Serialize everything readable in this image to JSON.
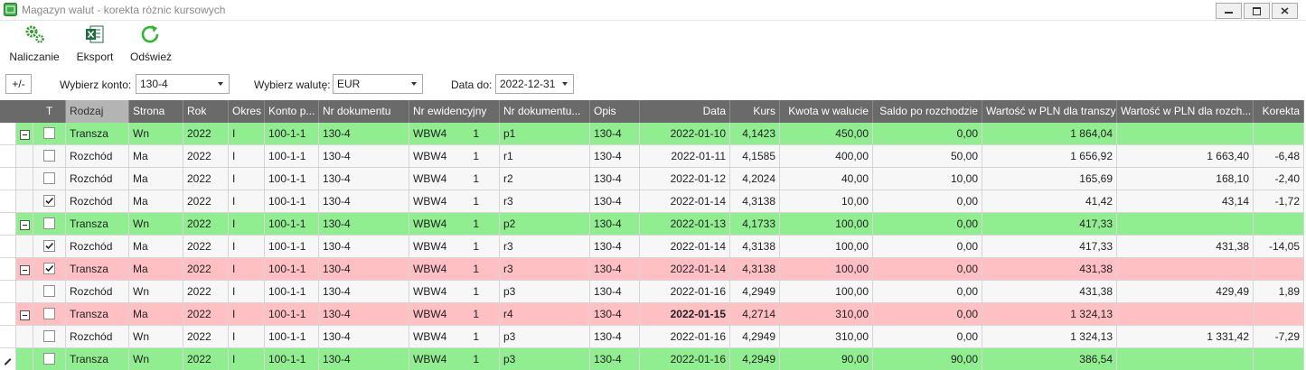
{
  "window": {
    "title": "Magazyn walut - korekta różnic kursowych"
  },
  "toolbar": {
    "buttons": [
      "Naliczanie",
      "Eksport",
      "Odśwież"
    ]
  },
  "filters": {
    "toggle": "+/-",
    "account_label": "Wybierz konto:",
    "account": "130-4",
    "currency_label": "Wybierz walutę:",
    "currency": "EUR",
    "date_label": "Data do:",
    "date": "2022-12-31"
  },
  "table": {
    "columns": [
      "T",
      "Rodzaj",
      "Strona",
      "Rok",
      "Okres",
      "Konto p...",
      "Nr dokumentu",
      "Nr ewidencyjny",
      "Nr dokumentu...",
      "Opis",
      "Data",
      "Kurs",
      "Kwota w walucie",
      "Saldo po rozchodzie",
      "Wartość w PLN dla transzy",
      "Wartość w PLN dla rozch...",
      "Korekta"
    ],
    "rows": [
      {
        "color": "#90ee90",
        "expander": true,
        "checked": false,
        "cells": [
          "Transza",
          "Wn",
          "2022",
          "I",
          "100-1-1",
          "130-4",
          [
            "WBW4",
            "1"
          ],
          "p1",
          "130-4",
          "2022-01-10",
          "4,1423",
          "450,00",
          "0,00",
          "1 864,04",
          null,
          null
        ]
      },
      {
        "color": "#f7f7f7",
        "expander": false,
        "checked": false,
        "cells": [
          "Rozchód",
          "Ma",
          "2022",
          "I",
          "100-1-1",
          "130-4",
          [
            "WBW4",
            "1"
          ],
          "r1",
          "130-4",
          "2022-01-11",
          "4,1585",
          "400,00",
          "50,00",
          "1 656,92",
          "1 663,40",
          "-6,48"
        ]
      },
      {
        "color": "#f7f7f7",
        "expander": false,
        "checked": false,
        "cells": [
          "Rozchód",
          "Ma",
          "2022",
          "I",
          "100-1-1",
          "130-4",
          [
            "WBW4",
            "1"
          ],
          "r2",
          "130-4",
          "2022-01-12",
          "4,2024",
          "40,00",
          "10,00",
          "165,69",
          "168,10",
          "-2,40"
        ]
      },
      {
        "color": "#f7f7f7",
        "expander": false,
        "checked": true,
        "cells": [
          "Rozchód",
          "Ma",
          "2022",
          "I",
          "100-1-1",
          "130-4",
          [
            "WBW4",
            "1"
          ],
          "r3",
          "130-4",
          "2022-01-14",
          "4,3138",
          "10,00",
          "0,00",
          "41,42",
          "43,14",
          "-1,72"
        ]
      },
      {
        "color": "#90ee90",
        "expander": true,
        "checked": false,
        "cells": [
          "Transza",
          "Wn",
          "2022",
          "I",
          "100-1-1",
          "130-4",
          [
            "WBW4",
            "1"
          ],
          "p2",
          "130-4",
          "2022-01-13",
          "4,1733",
          "100,00",
          "0,00",
          "417,33",
          null,
          null
        ]
      },
      {
        "color": "#f7f7f7",
        "expander": false,
        "checked": true,
        "cells": [
          "Rozchód",
          "Ma",
          "2022",
          "I",
          "100-1-1",
          "130-4",
          [
            "WBW4",
            "1"
          ],
          "r3",
          "130-4",
          "2022-01-14",
          "4,3138",
          "100,00",
          "0,00",
          "417,33",
          "431,38",
          "-14,05"
        ]
      },
      {
        "color": "#ffc0c4",
        "expander": true,
        "checked": true,
        "cells": [
          "Transza",
          "Ma",
          "2022",
          "I",
          "100-1-1",
          "130-4",
          [
            "WBW4",
            "1"
          ],
          "r3",
          "130-4",
          "2022-01-14",
          "4,3138",
          "100,00",
          "0,00",
          "431,38",
          null,
          null
        ]
      },
      {
        "color": "#f7f7f7",
        "expander": false,
        "checked": false,
        "cells": [
          "Rozchód",
          "Wn",
          "2022",
          "I",
          "100-1-1",
          "130-4",
          [
            "WBW4",
            "1"
          ],
          "p3",
          "130-4",
          "2022-01-16",
          "4,2949",
          "100,00",
          "0,00",
          "431,38",
          "429,49",
          "1,89"
        ]
      },
      {
        "color": "#ffc0c4",
        "expander": true,
        "checked": false,
        "bold_date": true,
        "cells": [
          "Transza",
          "Ma",
          "2022",
          "I",
          "100-1-1",
          "130-4",
          [
            "WBW4",
            "1"
          ],
          "r4",
          "130-4",
          "2022-01-15",
          "4,2714",
          "310,00",
          "0,00",
          "1 324,13",
          null,
          null
        ]
      },
      {
        "color": "#f7f7f7",
        "expander": false,
        "checked": false,
        "cells": [
          "Rozchód",
          "Wn",
          "2022",
          "I",
          "100-1-1",
          "130-4",
          [
            "WBW4",
            "1"
          ],
          "p3",
          "130-4",
          "2022-01-16",
          "4,2949",
          "310,00",
          "0,00",
          "1 324,13",
          "1 331,42",
          "-7,29"
        ]
      },
      {
        "color": "#90ee90",
        "expander": false,
        "checked": false,
        "editing": true,
        "cells": [
          "Transza",
          "Wn",
          "2022",
          "I",
          "100-1-1",
          "130-4",
          [
            "WBW4",
            "1"
          ],
          "p3",
          "130-4",
          "2022-01-16",
          "4,2949",
          "90,00",
          "90,00",
          "386,54",
          null,
          null
        ]
      }
    ]
  }
}
